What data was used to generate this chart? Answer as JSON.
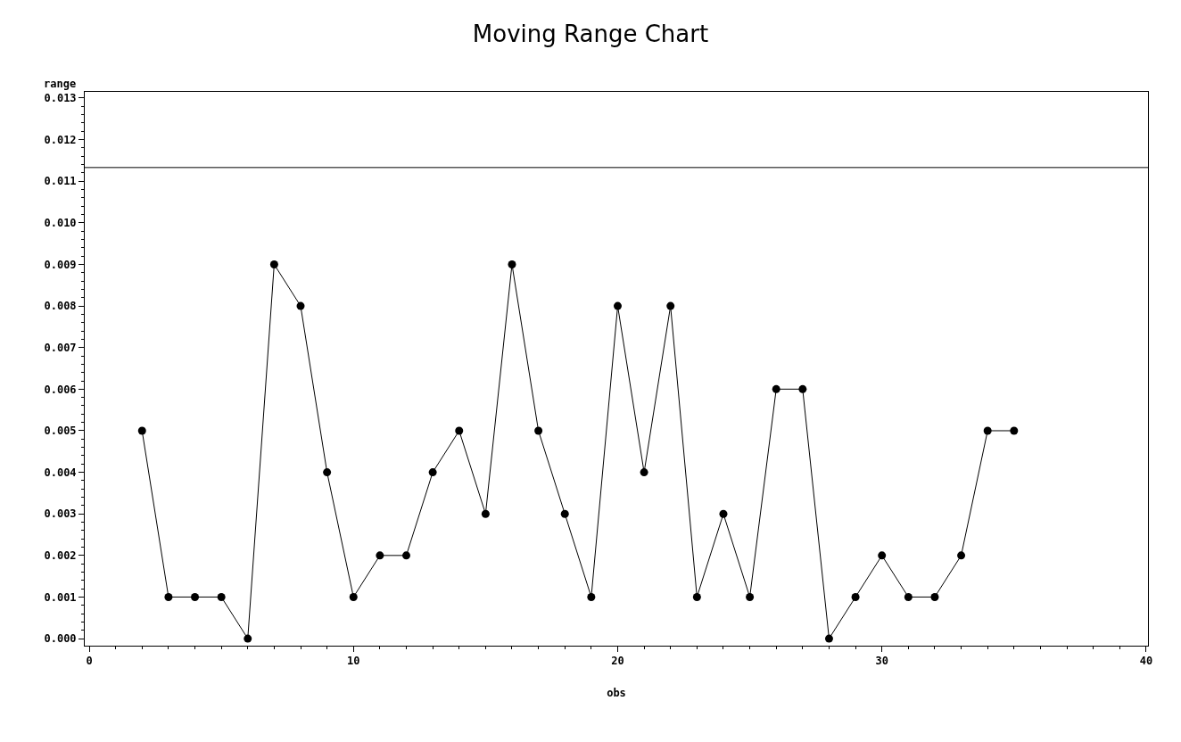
{
  "chart_data": {
    "type": "line",
    "title": "Moving Range Chart",
    "xlabel": "obs",
    "ylabel": "range",
    "x": [
      2,
      3,
      4,
      5,
      6,
      7,
      8,
      9,
      10,
      11,
      12,
      13,
      14,
      15,
      16,
      17,
      18,
      19,
      20,
      21,
      22,
      23,
      24,
      25,
      26,
      27,
      28,
      29,
      30,
      31,
      32,
      33,
      34,
      35
    ],
    "series": [
      {
        "color": "#000000",
        "values": [
          0.005,
          0.001,
          0.001,
          0.001,
          0.0,
          0.009,
          0.008,
          0.004,
          0.001,
          0.002,
          0.002,
          0.004,
          0.005,
          0.003,
          0.009,
          0.005,
          0.003,
          0.001,
          0.008,
          0.004,
          0.008,
          0.001,
          0.003,
          0.001,
          0.006,
          0.006,
          0.0,
          0.001,
          0.002,
          0.001,
          0.001,
          0.002,
          0.005,
          0.005
        ]
      }
    ],
    "xlim": [
      -0.17,
      40.07
    ],
    "xticks": [
      0,
      10,
      20,
      30,
      40
    ],
    "ylim": [
      -0.00017,
      0.01315
    ],
    "yticks": [
      {
        "value": 0,
        "label": "0.000"
      },
      {
        "value": 0.001,
        "label": "0.001"
      },
      {
        "value": 0.002,
        "label": "0.002"
      },
      {
        "value": 0.003,
        "label": "0.003"
      },
      {
        "value": 0.004,
        "label": "0.004"
      },
      {
        "value": 0.005,
        "label": "0.005"
      },
      {
        "value": 0.006,
        "label": "0.006"
      },
      {
        "value": 0.007,
        "label": "0.007"
      },
      {
        "value": 0.008,
        "label": "0.008"
      },
      {
        "value": 0.009,
        "label": "0.009"
      },
      {
        "value": 0.01,
        "label": "0.010"
      },
      {
        "value": 0.011,
        "label": "0.011"
      },
      {
        "value": 0.012,
        "label": "0.012"
      },
      {
        "value": 0.013,
        "label": "0.013"
      }
    ],
    "ref_lines": [
      {
        "axis": "y",
        "value": 0.01133,
        "color": "#000000"
      }
    ],
    "marker": "circle",
    "line_style": "solid"
  }
}
